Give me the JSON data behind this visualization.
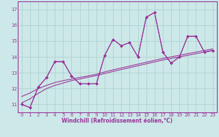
{
  "xlabel": "Windchill (Refroidissement éolien,°C)",
  "x_values": [
    0,
    1,
    2,
    3,
    4,
    5,
    6,
    7,
    8,
    9,
    10,
    11,
    12,
    13,
    14,
    15,
    16,
    17,
    18,
    19,
    20,
    21,
    22,
    23
  ],
  "line_jagged1": [
    11.0,
    10.8,
    12.1,
    12.7,
    13.7,
    13.7,
    12.8,
    12.3,
    12.3,
    12.3,
    14.1,
    15.1,
    14.7,
    14.9,
    14.0,
    16.5,
    16.8,
    14.3,
    13.6,
    14.0,
    15.3,
    15.3,
    14.3,
    14.4
  ],
  "line_jagged2": [
    11.0,
    10.8,
    12.1,
    12.7,
    13.7,
    13.7,
    12.8,
    12.3,
    12.3,
    12.3,
    14.1,
    15.1,
    14.7,
    14.9,
    14.0,
    16.5,
    16.8,
    14.3,
    13.6,
    14.0,
    15.3,
    15.3,
    14.3,
    14.4
  ],
  "line_trend1": [
    11.1,
    11.35,
    11.7,
    12.0,
    12.2,
    12.35,
    12.5,
    12.6,
    12.72,
    12.82,
    12.95,
    13.08,
    13.2,
    13.32,
    13.44,
    13.56,
    13.68,
    13.8,
    13.9,
    14.0,
    14.1,
    14.2,
    14.3,
    14.4
  ],
  "line_trend2": [
    11.5,
    11.72,
    12.0,
    12.2,
    12.38,
    12.5,
    12.6,
    12.7,
    12.8,
    12.9,
    13.05,
    13.18,
    13.3,
    13.42,
    13.54,
    13.66,
    13.78,
    13.9,
    14.0,
    14.1,
    14.2,
    14.3,
    14.4,
    14.5
  ],
  "bg_color": "#cce8e8",
  "line_color": "#993399",
  "grid_color": "#aacccc",
  "ylim": [
    10.5,
    17.5
  ],
  "xlim": [
    -0.5,
    23.5
  ],
  "yticks": [
    11,
    12,
    13,
    14,
    15,
    16,
    17
  ],
  "xticks": [
    0,
    1,
    2,
    3,
    4,
    5,
    6,
    7,
    8,
    9,
    10,
    11,
    12,
    13,
    14,
    15,
    16,
    17,
    18,
    19,
    20,
    21,
    22,
    23
  ],
  "tick_fontsize": 5.0,
  "xlabel_fontsize": 5.5,
  "line_width": 0.8,
  "marker_size": 2.0
}
